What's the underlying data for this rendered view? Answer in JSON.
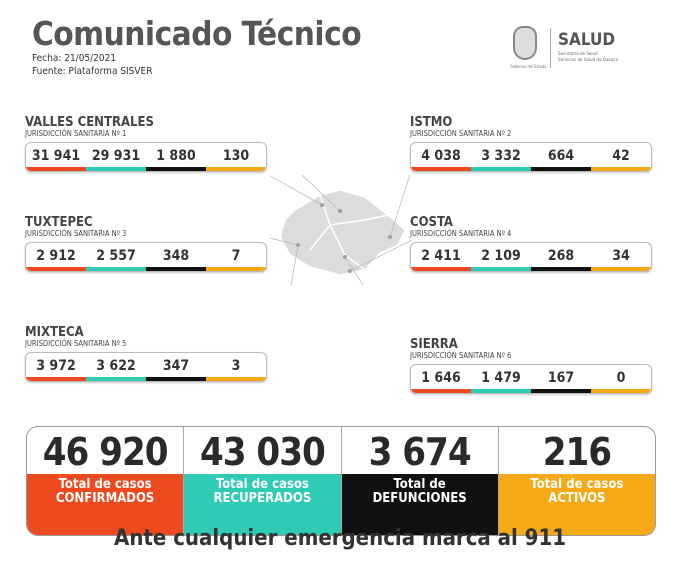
{
  "header": {
    "title": "Comunicado Técnico",
    "fecha": "Fecha: 21/05/2021",
    "fuente": "Fuente: Plataforma SISVER"
  },
  "logo": {
    "name": "SALUD",
    "line1": "Secretaría de Salud",
    "line2": "Servicios de Salud de Oaxaca",
    "seal_caption": "Gobierno del Estado"
  },
  "colors": {
    "confirmados": "#ee4a1f",
    "recuperados": "#2fcbb4",
    "defunciones": "#111111",
    "activos": "#f5a916"
  },
  "regions": [
    {
      "name": "VALLES CENTRALES",
      "jurisdiction": "JURISDICCIÓN SANITARIA Nº 1",
      "values": [
        "31 941",
        "29 931",
        "1 880",
        "130"
      ]
    },
    {
      "name": "ISTMO",
      "jurisdiction": "JURISDICCIÓN SANITARIA Nº 2",
      "values": [
        "4 038",
        "3 332",
        "664",
        "42"
      ]
    },
    {
      "name": "TUXTEPEC",
      "jurisdiction": "JURISDICCIÓN SANITARIA Nº 3",
      "values": [
        "2 912",
        "2 557",
        "348",
        "7"
      ]
    },
    {
      "name": "COSTA",
      "jurisdiction": "JURISDICCIÓN SANITARIA Nº 4",
      "values": [
        "2 411",
        "2 109",
        "268",
        "34"
      ]
    },
    {
      "name": "MIXTECA",
      "jurisdiction": "JURISDICCIÓN SANITARIA Nº 5",
      "values": [
        "3 972",
        "3 622",
        "347",
        "3"
      ]
    },
    {
      "name": "SIERRA",
      "jurisdiction": "JURISDICCIÓN SANITARIA Nº 6",
      "values": [
        "1 646",
        "1 479",
        "167",
        "0"
      ]
    }
  ],
  "totals": [
    {
      "value": "46 920",
      "label1": "Total de casos",
      "label2": "CONFIRMADOS"
    },
    {
      "value": "43 030",
      "label1": "Total de casos",
      "label2": "RECUPERADOS"
    },
    {
      "value": "3 674",
      "label1": "Total de",
      "label2": "DEFUNCIONES"
    },
    {
      "value": "216",
      "label1": "Total de casos",
      "label2": "ACTIVOS"
    }
  ],
  "footer": "Ante cualquier emergencia marca al 911"
}
